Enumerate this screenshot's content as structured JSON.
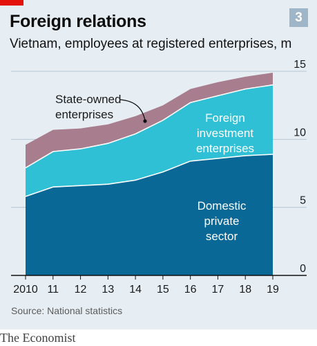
{
  "header": {
    "title": "Foreign relations",
    "subtitle": "Vietnam, employees at registered enterprises, m",
    "badge": "3"
  },
  "footer": {
    "source": "Source: National statistics",
    "publisher": "The Economist"
  },
  "colors": {
    "background": "#e6eef4",
    "accent_red": "#e3120b",
    "badge": "#9fb6c9",
    "domestic": "#0a6896",
    "foreign": "#2fc0d6",
    "state": "#a87d8e"
  },
  "chart_data": {
    "type": "area",
    "stacked": true,
    "x": [
      "2010",
      "11",
      "12",
      "13",
      "14",
      "15",
      "16",
      "17",
      "18",
      "19"
    ],
    "ylim": [
      0,
      15
    ],
    "yticks": [
      "0",
      "5",
      "10",
      "15"
    ],
    "grid": true,
    "series": [
      {
        "name": "Domestic private sector",
        "label_lines": [
          "Domestic",
          "private",
          "sector"
        ],
        "values": [
          5.8,
          6.5,
          6.6,
          6.7,
          7.0,
          7.6,
          8.4,
          8.6,
          8.8,
          8.9
        ]
      },
      {
        "name": "Foreign investment enterprises",
        "label_lines": [
          "Foreign",
          "investment",
          "enterprises"
        ],
        "values": [
          2.1,
          2.6,
          2.7,
          3.0,
          3.4,
          3.8,
          4.3,
          4.6,
          4.9,
          5.1
        ]
      },
      {
        "name": "State-owned enterprises",
        "label_lines": [
          "State-owned",
          "enterprises"
        ],
        "values": [
          1.7,
          1.6,
          1.5,
          1.4,
          1.3,
          1.1,
          1.0,
          1.0,
          0.9,
          0.9
        ]
      }
    ]
  }
}
